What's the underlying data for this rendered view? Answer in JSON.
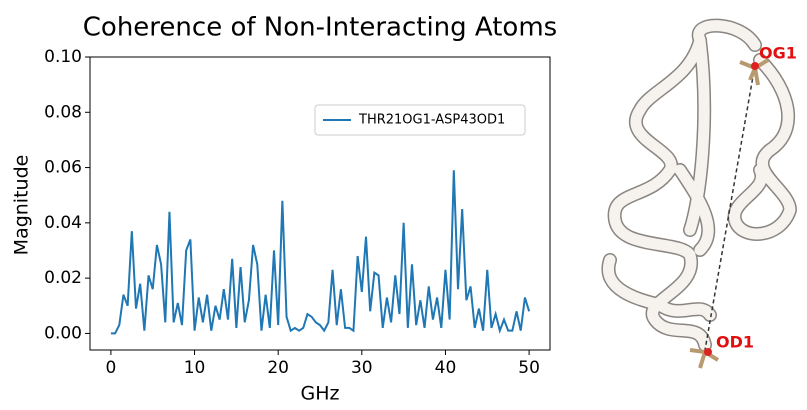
{
  "chart_data": {
    "type": "line",
    "title": "Coherence of Non-Interacting Atoms",
    "x_label": "GHz",
    "y_label": "Magnitude",
    "x": [
      0,
      0.5,
      1,
      1.5,
      2,
      2.5,
      3,
      3.5,
      4,
      4.5,
      5,
      5.5,
      6,
      6.5,
      7,
      7.5,
      8,
      8.5,
      9,
      9.5,
      10,
      10.5,
      11,
      11.5,
      12,
      12.5,
      13,
      13.5,
      14,
      14.5,
      15,
      15.5,
      16,
      16.5,
      17,
      17.5,
      18,
      18.5,
      19,
      19.5,
      20,
      20.5,
      21,
      21.5,
      22,
      22.5,
      23,
      23.5,
      24,
      24.5,
      25,
      25.5,
      26,
      26.5,
      27,
      27.5,
      28,
      28.5,
      29,
      29.5,
      30,
      30.5,
      31,
      31.5,
      32,
      32.5,
      33,
      33.5,
      34,
      34.5,
      35,
      35.5,
      36,
      36.5,
      37,
      37.5,
      38,
      38.5,
      39,
      39.5,
      40,
      40.5,
      41,
      41.5,
      42,
      42.5,
      43,
      43.5,
      44,
      44.5,
      45,
      45.5,
      46,
      46.5,
      47,
      47.5,
      48,
      48.5,
      49,
      49.5,
      50
    ],
    "series": [
      {
        "name": "THR21OG1-ASP43OD1",
        "color": "#1f77b4",
        "values": [
          0,
          0,
          0.003,
          0.014,
          0.01,
          0.037,
          0.009,
          0.018,
          0.001,
          0.021,
          0.016,
          0.032,
          0.025,
          0.004,
          0.044,
          0.004,
          0.011,
          0.003,
          0.03,
          0.034,
          0.001,
          0.013,
          0.004,
          0.014,
          0.001,
          0.01,
          0.005,
          0.016,
          0.005,
          0.027,
          0.002,
          0.024,
          0.004,
          0.012,
          0.032,
          0.025,
          0.001,
          0.014,
          0.002,
          0.03,
          0.003,
          0.048,
          0.006,
          0.001,
          0.002,
          0.001,
          0.002,
          0.007,
          0.006,
          0.004,
          0.003,
          0.001,
          0.004,
          0.023,
          0.003,
          0.016,
          0.002,
          0.002,
          0.001,
          0.028,
          0.015,
          0.035,
          0.008,
          0.022,
          0.021,
          0.002,
          0.013,
          0.004,
          0.021,
          0.007,
          0.04,
          0.002,
          0.025,
          0.003,
          0.012,
          0.002,
          0.017,
          0.005,
          0.013,
          0.002,
          0.023,
          0.005,
          0.059,
          0.016,
          0.045,
          0.012,
          0.017,
          0.002,
          0.009,
          0.001,
          0.023,
          0.002,
          0.007,
          0.001,
          0.005,
          0.001,
          0.001,
          0.008,
          0.001,
          0.013,
          0.008
        ]
      }
    ],
    "xlim": [
      -2.5,
      52.5
    ],
    "ylim": [
      -0.006,
      0.1
    ],
    "xticks": [
      0,
      10,
      20,
      30,
      40,
      50
    ],
    "yticks": [
      {
        "value": 0,
        "label": "0.00"
      },
      {
        "value": 0.02,
        "label": "0.02"
      },
      {
        "value": 0.04,
        "label": "0.04"
      },
      {
        "value": 0.06,
        "label": "0.06"
      },
      {
        "value": 0.08,
        "label": "0.08"
      },
      {
        "value": 0.1,
        "label": "0.10"
      }
    ],
    "grid": false,
    "legend": "upper right"
  },
  "structure_labels": [
    "OG1",
    "OD1"
  ]
}
